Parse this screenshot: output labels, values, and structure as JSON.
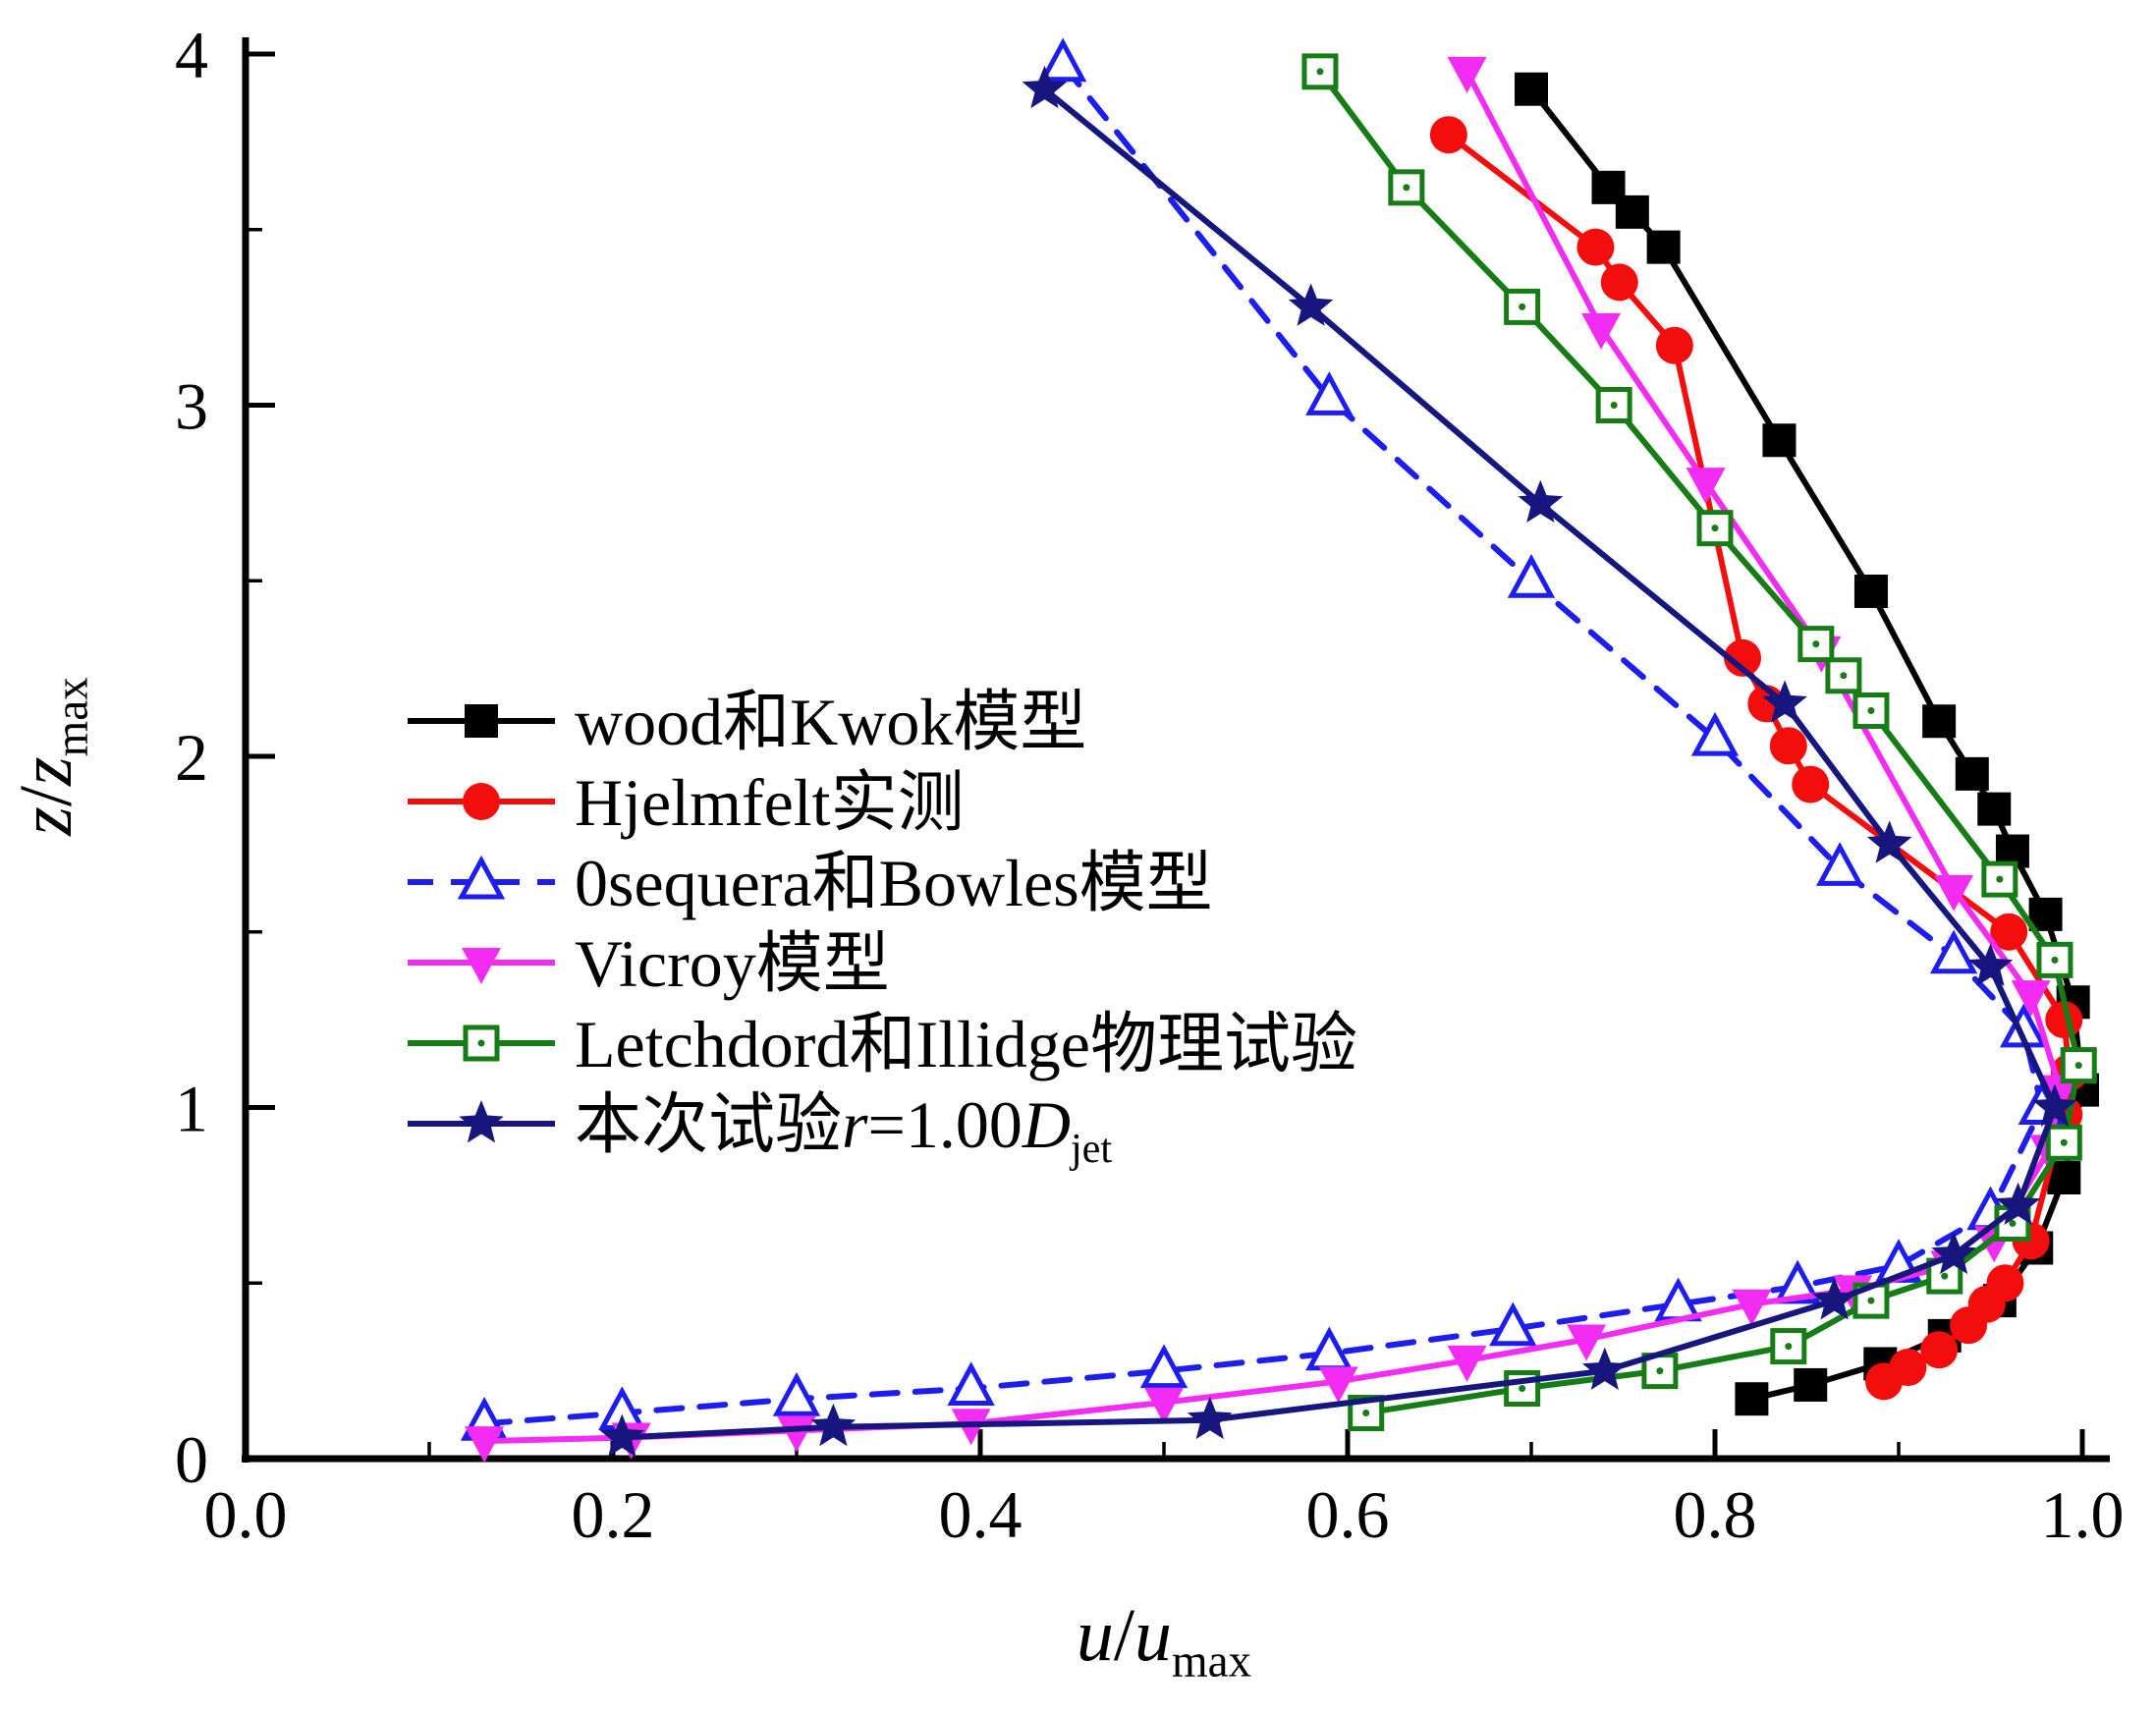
{
  "figure": {
    "background": "#ffffff"
  },
  "chart_data": {
    "type": "line",
    "title": "",
    "xlabel_parts": [
      [
        "u",
        "i"
      ],
      [
        "/",
        ""
      ],
      [
        "u",
        "i"
      ],
      [
        "max",
        "s"
      ]
    ],
    "ylabel_parts": [
      [
        "z",
        "i"
      ],
      [
        "/",
        ""
      ],
      [
        "z",
        "i"
      ],
      [
        "max",
        "s"
      ]
    ],
    "xlim": [
      0.0,
      1.0
    ],
    "ylim": [
      0,
      4
    ],
    "xticks": [
      0.0,
      0.2,
      0.4,
      0.6,
      0.8,
      1.0
    ],
    "xtick_labels": [
      "0.0",
      "0.2",
      "0.4",
      "0.6",
      "0.8",
      "1.0"
    ],
    "yticks": [
      0,
      1,
      2,
      3,
      4
    ],
    "ytick_labels": [
      "0",
      "1",
      "2",
      "3",
      "4"
    ],
    "x_minor_step": 0.1,
    "y_minor_step": 0.5,
    "grid": false,
    "legend_position": "inside-center-left",
    "series": [
      {
        "name": "wood和Kwok模型",
        "name_parts": [
          [
            "wood和Kwok模型",
            ""
          ]
        ],
        "color": "#000000",
        "marker": "square",
        "line": "solid",
        "points": [
          [
            0.7,
            3.9
          ],
          [
            0.742,
            3.62
          ],
          [
            0.755,
            3.55
          ],
          [
            0.772,
            3.45
          ],
          [
            0.835,
            2.9
          ],
          [
            0.885,
            2.47
          ],
          [
            0.922,
            2.1
          ],
          [
            0.94,
            1.95
          ],
          [
            0.952,
            1.85
          ],
          [
            0.962,
            1.73
          ],
          [
            0.98,
            1.55
          ],
          [
            0.995,
            1.3
          ],
          [
            1.0,
            1.05
          ],
          [
            0.99,
            0.8
          ],
          [
            0.975,
            0.6
          ],
          [
            0.955,
            0.45
          ],
          [
            0.925,
            0.35
          ],
          [
            0.89,
            0.27
          ],
          [
            0.852,
            0.21
          ],
          [
            0.82,
            0.17
          ]
        ]
      },
      {
        "name": "Hjelmfelt实测",
        "name_parts": [
          [
            "Hjelmfelt实测",
            ""
          ]
        ],
        "color": "#f40d0d",
        "marker": "circle",
        "line": "solid",
        "points": [
          [
            0.655,
            3.77
          ],
          [
            0.735,
            3.45
          ],
          [
            0.748,
            3.35
          ],
          [
            0.778,
            3.17
          ],
          [
            0.815,
            2.28
          ],
          [
            0.828,
            2.15
          ],
          [
            0.84,
            2.03
          ],
          [
            0.852,
            1.92
          ],
          [
            0.96,
            1.5
          ],
          [
            0.99,
            1.25
          ],
          [
            0.993,
            1.1
          ],
          [
            0.99,
            0.98
          ],
          [
            0.972,
            0.62
          ],
          [
            0.958,
            0.5
          ],
          [
            0.948,
            0.44
          ],
          [
            0.938,
            0.38
          ],
          [
            0.922,
            0.31
          ],
          [
            0.905,
            0.26
          ],
          [
            0.892,
            0.22
          ]
        ]
      },
      {
        "name": "0sequera和Bowles模型",
        "name_parts": [
          [
            "0sequera和Bowles模型",
            ""
          ]
        ],
        "color": "#1d1df0",
        "marker": "triangle-up",
        "line": "dashed",
        "points": [
          [
            0.445,
            3.97
          ],
          [
            0.59,
            3.02
          ],
          [
            0.7,
            2.5
          ],
          [
            0.8,
            2.05
          ],
          [
            0.868,
            1.68
          ],
          [
            0.93,
            1.43
          ],
          [
            0.968,
            1.22
          ],
          [
            0.978,
            1.0
          ],
          [
            0.95,
            0.7
          ],
          [
            0.9,
            0.55
          ],
          [
            0.845,
            0.49
          ],
          [
            0.78,
            0.44
          ],
          [
            0.69,
            0.37
          ],
          [
            0.59,
            0.3
          ],
          [
            0.5,
            0.25
          ],
          [
            0.395,
            0.2
          ],
          [
            0.3,
            0.17
          ],
          [
            0.205,
            0.13
          ],
          [
            0.13,
            0.1
          ]
        ]
      },
      {
        "name": "Vicroy模型",
        "name_parts": [
          [
            "Vicroy模型",
            ""
          ]
        ],
        "color": "#f32cf3",
        "marker": "triangle-down",
        "line": "solid",
        "points": [
          [
            0.665,
            3.95
          ],
          [
            0.738,
            3.22
          ],
          [
            0.795,
            2.78
          ],
          [
            0.858,
            2.3
          ],
          [
            0.93,
            1.62
          ],
          [
            0.972,
            1.32
          ],
          [
            0.988,
            1.05
          ],
          [
            0.982,
            0.88
          ],
          [
            0.952,
            0.62
          ],
          [
            0.928,
            0.55
          ],
          [
            0.875,
            0.48
          ],
          [
            0.82,
            0.44
          ],
          [
            0.73,
            0.34
          ],
          [
            0.665,
            0.28
          ],
          [
            0.595,
            0.22
          ],
          [
            0.5,
            0.16
          ],
          [
            0.395,
            0.1
          ],
          [
            0.3,
            0.08
          ],
          [
            0.21,
            0.06
          ],
          [
            0.13,
            0.05
          ]
        ]
      },
      {
        "name": "Letchdord和Illidge物理试验",
        "name_parts": [
          [
            "Letchdord和Illidge物理试验",
            ""
          ]
        ],
        "color": "#167c16",
        "marker": "open-square",
        "line": "solid",
        "points": [
          [
            0.585,
            3.95
          ],
          [
            0.632,
            3.62
          ],
          [
            0.695,
            3.28
          ],
          [
            0.745,
            3.0
          ],
          [
            0.8,
            2.65
          ],
          [
            0.855,
            2.32
          ],
          [
            0.87,
            2.23
          ],
          [
            0.885,
            2.13
          ],
          [
            0.955,
            1.65
          ],
          [
            0.985,
            1.42
          ],
          [
            0.998,
            1.12
          ],
          [
            0.99,
            0.9
          ],
          [
            0.962,
            0.67
          ],
          [
            0.925,
            0.52
          ],
          [
            0.885,
            0.45
          ],
          [
            0.84,
            0.32
          ],
          [
            0.77,
            0.25
          ],
          [
            0.695,
            0.2
          ],
          [
            0.61,
            0.13
          ]
        ]
      },
      {
        "name": "本次试验r=1.00Djet",
        "name_parts": [
          [
            "本次试验",
            ""
          ],
          [
            "r",
            "i"
          ],
          [
            "=1.00",
            ""
          ],
          [
            "D",
            "i"
          ],
          [
            "jet",
            "s"
          ]
        ],
        "color": "#16167e",
        "marker": "star",
        "line": "solid",
        "points": [
          [
            0.435,
            3.9
          ],
          [
            0.58,
            3.28
          ],
          [
            0.705,
            2.72
          ],
          [
            0.838,
            2.15
          ],
          [
            0.895,
            1.75
          ],
          [
            0.95,
            1.4
          ],
          [
            0.985,
            1.0
          ],
          [
            0.965,
            0.72
          ],
          [
            0.93,
            0.58
          ],
          [
            0.865,
            0.45
          ],
          [
            0.74,
            0.25
          ],
          [
            0.525,
            0.11
          ],
          [
            0.32,
            0.09
          ],
          [
            0.205,
            0.06
          ]
        ]
      }
    ]
  }
}
